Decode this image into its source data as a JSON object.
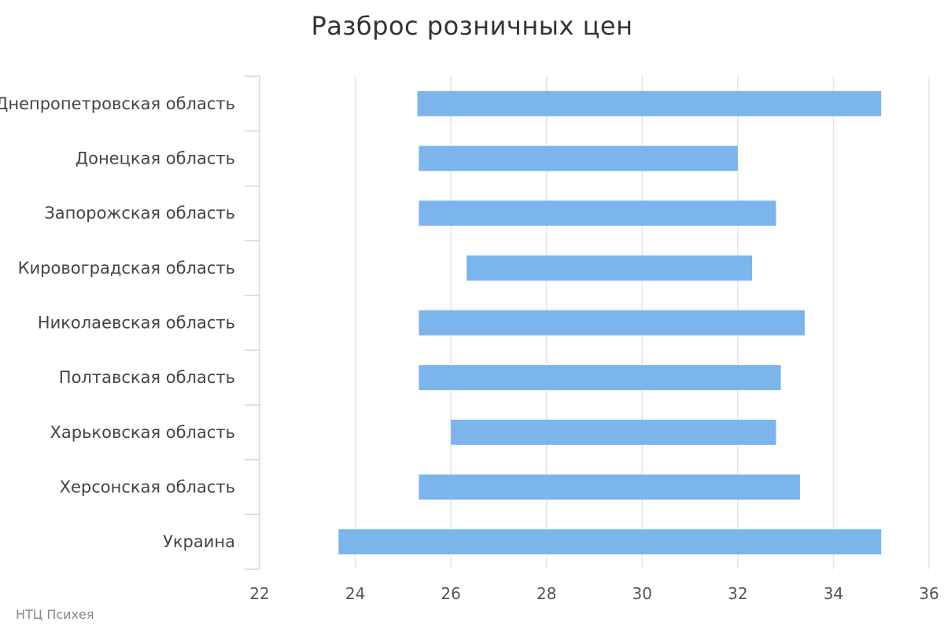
{
  "chart_data": {
    "type": "bar",
    "orientation": "horizontal",
    "subtype": "range",
    "title": "Разброс розничных цен",
    "credit": "НТЦ Психея",
    "categories": [
      "Днепропетровская область",
      "Донецкая область",
      "Запорожская область",
      "Кировоградская область",
      "Николаевская область",
      "Полтавская область",
      "Харьковская область",
      "Херсонская область",
      "Украина"
    ],
    "ranges": [
      [
        25.3,
        35.0
      ],
      [
        25.33,
        32.0
      ],
      [
        25.33,
        32.8
      ],
      [
        26.33,
        32.3
      ],
      [
        25.33,
        33.4
      ],
      [
        25.33,
        32.9
      ],
      [
        26.0,
        32.8
      ],
      [
        25.33,
        33.3
      ],
      [
        23.65,
        35.0
      ]
    ],
    "xlim": [
      22,
      36
    ],
    "xticks": [
      22,
      24,
      26,
      28,
      30,
      32,
      34,
      36
    ],
    "xlabel": "",
    "ylabel": "",
    "grid": true,
    "legend": "none",
    "colors": {
      "bar": "#7cb5ec",
      "grid": "#e6e6e6",
      "axis": "#ccd6eb"
    }
  }
}
